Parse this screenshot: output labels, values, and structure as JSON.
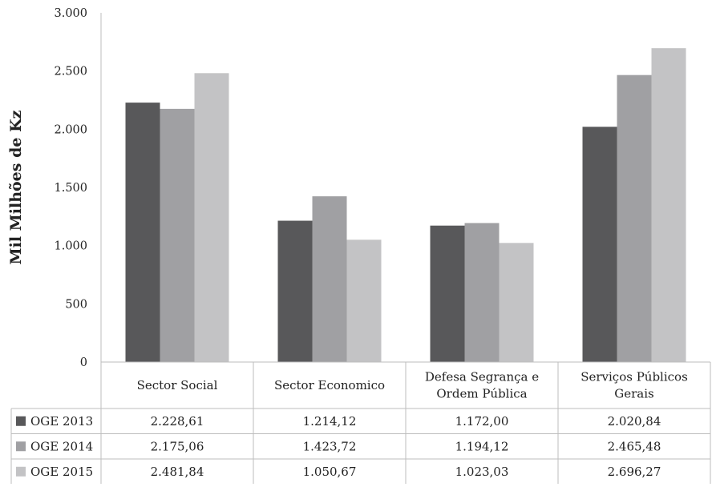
{
  "chart_data": {
    "type": "bar",
    "ylabel": "Mil Milhões de Kz",
    "ylim": [
      0,
      3000
    ],
    "yticks": [
      0,
      500,
      1000,
      1500,
      2000,
      2500,
      3000
    ],
    "ytick_labels": [
      "0",
      "500",
      "1.000",
      "1.500",
      "2.000",
      "2.500",
      "3.000"
    ],
    "categories": [
      [
        "Sector Social"
      ],
      [
        "Sector Economico"
      ],
      [
        "Defesa Segrança e",
        "Ordem Pública"
      ],
      [
        "Serviços Públicos",
        "Gerais"
      ]
    ],
    "series": [
      {
        "name": "OGE 2013",
        "color": "#58585a",
        "values": [
          2228.61,
          1214.12,
          1172.0,
          2020.84
        ],
        "labels": [
          "2.228,61",
          "1.214,12",
          "1.172,00",
          "2.020,84"
        ]
      },
      {
        "name": "OGE 2014",
        "color": "#a0a0a3",
        "values": [
          2175.06,
          1423.72,
          1194.12,
          2465.48
        ],
        "labels": [
          "2.175,06",
          "1.423,72",
          "1.194,12",
          "2.465,48"
        ]
      },
      {
        "name": "OGE 2015",
        "color": "#c3c3c5",
        "values": [
          2481.84,
          1050.67,
          1023.03,
          2696.27
        ],
        "labels": [
          "2.481,84",
          "1.050,67",
          "1.023,03",
          "2.696,27"
        ]
      }
    ],
    "grid": false,
    "legend": "data-table"
  }
}
